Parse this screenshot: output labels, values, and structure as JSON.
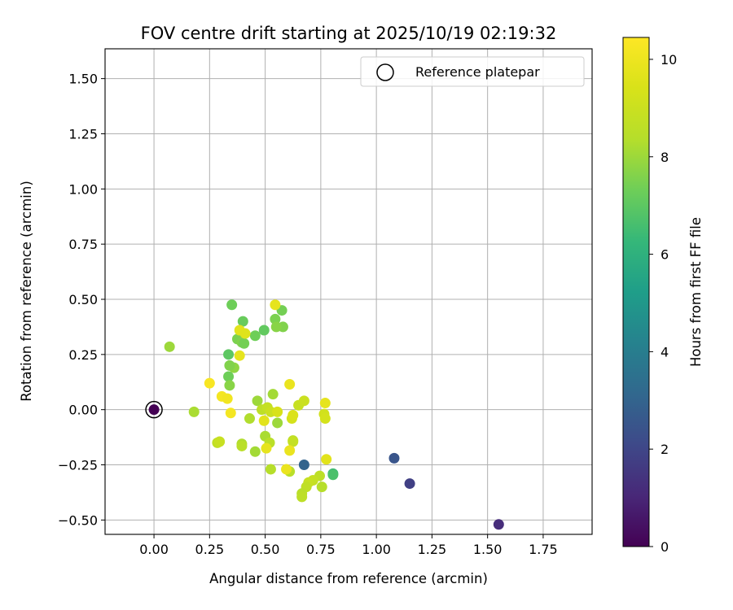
{
  "chart_data": {
    "type": "scatter",
    "title": "FOV centre drift starting at 2025/10/19 02:19:32",
    "xlabel": "Angular distance from reference (arcmin)",
    "ylabel": "Rotation from reference (arcmin)",
    "xlim": [
      -0.22,
      1.97
    ],
    "ylim": [
      -0.565,
      1.635
    ],
    "x_ticks": [
      0.0,
      0.25,
      0.5,
      0.75,
      1.0,
      1.25,
      1.5,
      1.75
    ],
    "x_tick_labels": [
      "0.00",
      "0.25",
      "0.50",
      "0.75",
      "1.00",
      "1.25",
      "1.50",
      "1.75"
    ],
    "y_ticks": [
      -0.5,
      -0.25,
      0.0,
      0.25,
      0.5,
      0.75,
      1.0,
      1.25,
      1.5
    ],
    "y_tick_labels": [
      "−0.50",
      "−0.25",
      "0.00",
      "0.25",
      "0.50",
      "0.75",
      "1.00",
      "1.25",
      "1.50"
    ],
    "grid": true,
    "legend": {
      "position": "upper right",
      "entries": [
        "Reference platepar"
      ]
    },
    "reference_point": {
      "x": 0.0,
      "y": 0.0,
      "label": "Reference platepar"
    },
    "colorbar": {
      "label": "Hours from first FF file",
      "colormap": "viridis",
      "min": 0,
      "max": 10.45,
      "ticks": [
        0,
        2,
        4,
        6,
        8,
        10
      ],
      "tick_labels": [
        "0",
        "2",
        "4",
        "6",
        "8",
        "10"
      ]
    },
    "points": [
      {
        "x": 0.0,
        "y": 0.0,
        "c": 0.0
      },
      {
        "x": 1.55,
        "y": -0.52,
        "c": 1.2
      },
      {
        "x": 1.15,
        "y": -0.335,
        "c": 1.8
      },
      {
        "x": 1.08,
        "y": -0.22,
        "c": 2.5
      },
      {
        "x": 0.675,
        "y": -0.25,
        "c": 3.0
      },
      {
        "x": 0.805,
        "y": -0.29,
        "c": 6.4
      },
      {
        "x": 0.805,
        "y": -0.295,
        "c": 6.7
      },
      {
        "x": 0.35,
        "y": 0.475,
        "c": 7.3
      },
      {
        "x": 0.575,
        "y": 0.45,
        "c": 7.4
      },
      {
        "x": 0.4,
        "y": 0.4,
        "c": 7.2
      },
      {
        "x": 0.545,
        "y": 0.41,
        "c": 7.5
      },
      {
        "x": 0.58,
        "y": 0.375,
        "c": 7.6
      },
      {
        "x": 0.55,
        "y": 0.375,
        "c": 7.7
      },
      {
        "x": 0.495,
        "y": 0.36,
        "c": 7.1
      },
      {
        "x": 0.455,
        "y": 0.335,
        "c": 7.3
      },
      {
        "x": 0.375,
        "y": 0.32,
        "c": 7.5
      },
      {
        "x": 0.395,
        "y": 0.305,
        "c": 7.6
      },
      {
        "x": 0.405,
        "y": 0.3,
        "c": 7.4
      },
      {
        "x": 0.335,
        "y": 0.25,
        "c": 7.0
      },
      {
        "x": 0.36,
        "y": 0.19,
        "c": 7.8
      },
      {
        "x": 0.34,
        "y": 0.2,
        "c": 7.6
      },
      {
        "x": 0.335,
        "y": 0.15,
        "c": 7.3
      },
      {
        "x": 0.34,
        "y": 0.11,
        "c": 7.7
      },
      {
        "x": 0.07,
        "y": 0.285,
        "c": 8.0
      },
      {
        "x": 0.18,
        "y": -0.01,
        "c": 8.2
      },
      {
        "x": 0.465,
        "y": 0.04,
        "c": 8.0
      },
      {
        "x": 0.535,
        "y": 0.07,
        "c": 8.1
      },
      {
        "x": 0.485,
        "y": 0.0,
        "c": 8.6
      },
      {
        "x": 0.51,
        "y": 0.01,
        "c": 8.8
      },
      {
        "x": 0.525,
        "y": -0.01,
        "c": 9.0
      },
      {
        "x": 0.43,
        "y": -0.04,
        "c": 8.3
      },
      {
        "x": 0.555,
        "y": -0.06,
        "c": 8.0
      },
      {
        "x": 0.5,
        "y": -0.12,
        "c": 8.2
      },
      {
        "x": 0.52,
        "y": -0.15,
        "c": 8.5
      },
      {
        "x": 0.395,
        "y": -0.155,
        "c": 8.3
      },
      {
        "x": 0.395,
        "y": -0.165,
        "c": 8.5
      },
      {
        "x": 0.455,
        "y": -0.19,
        "c": 8.1
      },
      {
        "x": 0.525,
        "y": -0.27,
        "c": 8.4
      },
      {
        "x": 0.625,
        "y": -0.14,
        "c": 8.6
      },
      {
        "x": 0.625,
        "y": -0.145,
        "c": 8.8
      },
      {
        "x": 0.61,
        "y": -0.28,
        "c": 8.5
      },
      {
        "x": 0.285,
        "y": -0.15,
        "c": 8.7
      },
      {
        "x": 0.295,
        "y": -0.145,
        "c": 8.9
      },
      {
        "x": 0.65,
        "y": 0.02,
        "c": 8.9
      },
      {
        "x": 0.675,
        "y": 0.04,
        "c": 9.0
      },
      {
        "x": 0.765,
        "y": -0.02,
        "c": 9.2
      },
      {
        "x": 0.77,
        "y": -0.04,
        "c": 9.3
      },
      {
        "x": 0.745,
        "y": -0.3,
        "c": 8.6
      },
      {
        "x": 0.755,
        "y": -0.35,
        "c": 8.4
      },
      {
        "x": 0.715,
        "y": -0.32,
        "c": 8.8
      },
      {
        "x": 0.695,
        "y": -0.33,
        "c": 8.9
      },
      {
        "x": 0.685,
        "y": -0.35,
        "c": 8.7
      },
      {
        "x": 0.665,
        "y": -0.38,
        "c": 8.5
      },
      {
        "x": 0.665,
        "y": -0.395,
        "c": 8.6
      },
      {
        "x": 0.555,
        "y": -0.01,
        "c": 9.4
      },
      {
        "x": 0.62,
        "y": -0.04,
        "c": 9.3
      },
      {
        "x": 0.625,
        "y": -0.025,
        "c": 9.5
      },
      {
        "x": 0.495,
        "y": -0.05,
        "c": 9.7
      },
      {
        "x": 0.505,
        "y": -0.175,
        "c": 9.8
      },
      {
        "x": 0.61,
        "y": -0.185,
        "c": 9.9
      },
      {
        "x": 0.595,
        "y": -0.27,
        "c": 9.9
      },
      {
        "x": 0.775,
        "y": -0.225,
        "c": 9.7
      },
      {
        "x": 0.77,
        "y": 0.03,
        "c": 9.8
      },
      {
        "x": 0.61,
        "y": 0.115,
        "c": 9.9
      },
      {
        "x": 0.385,
        "y": 0.245,
        "c": 9.8
      },
      {
        "x": 0.385,
        "y": 0.36,
        "c": 9.7
      },
      {
        "x": 0.41,
        "y": 0.345,
        "c": 9.6
      },
      {
        "x": 0.545,
        "y": 0.475,
        "c": 9.8
      },
      {
        "x": 0.25,
        "y": 0.12,
        "c": 10.3
      },
      {
        "x": 0.305,
        "y": 0.06,
        "c": 10.2
      },
      {
        "x": 0.33,
        "y": 0.05,
        "c": 10.1
      },
      {
        "x": 0.345,
        "y": -0.015,
        "c": 10.2
      }
    ]
  }
}
